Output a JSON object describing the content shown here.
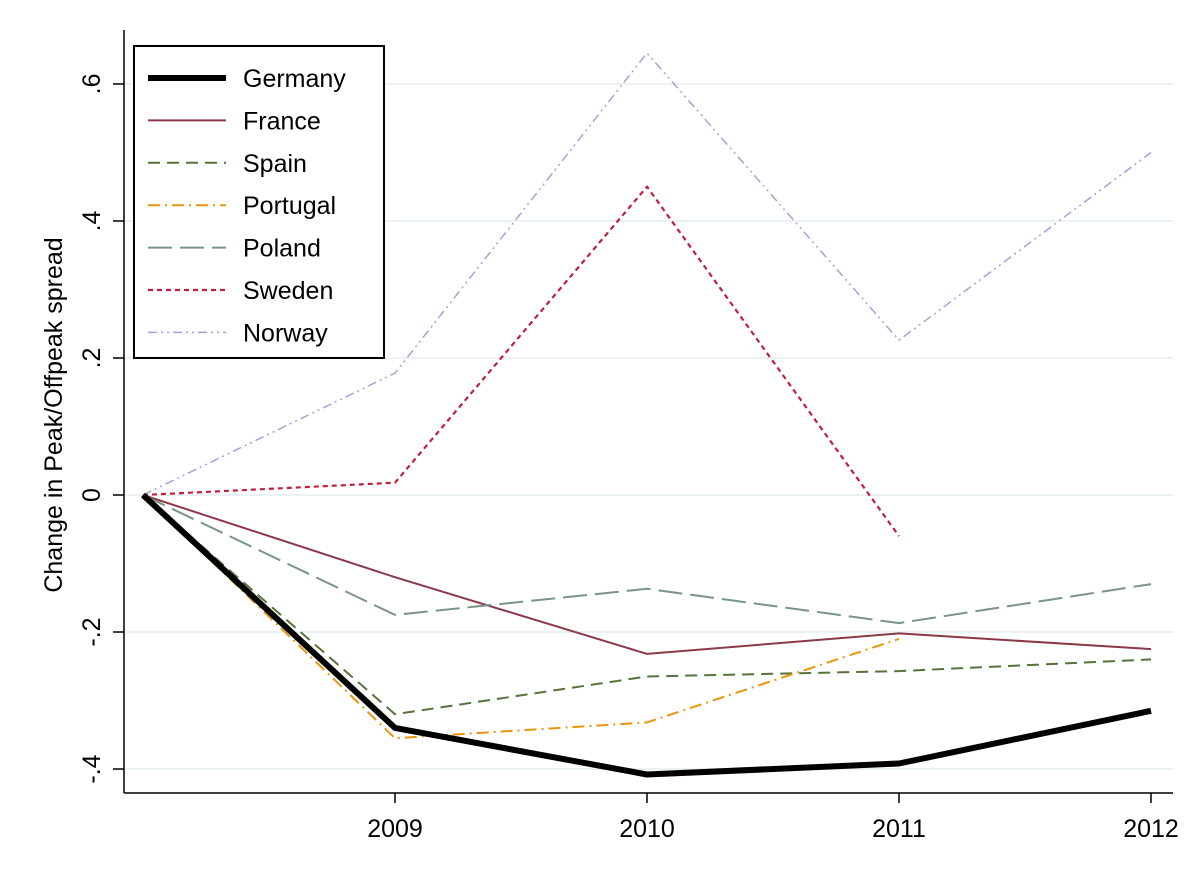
{
  "chart_data": {
    "type": "line",
    "title": "",
    "xlabel": "",
    "ylabel": "Change in Peak/Offpeak spread",
    "x": [
      2008,
      2009,
      2010,
      2011,
      2012
    ],
    "x_tick_values": [
      2009,
      2010,
      2011,
      2012
    ],
    "x_tick_labels": [
      "2009",
      "2010",
      "2011",
      "2012"
    ],
    "xlim": [
      2008,
      2012
    ],
    "y_tick_values": [
      -0.4,
      -0.2,
      0,
      0.2,
      0.4,
      0.6
    ],
    "y_tick_labels": [
      "-.4",
      "-.2",
      "0",
      ".2",
      ".4",
      ".6"
    ],
    "ylim": [
      -0.435,
      0.67
    ],
    "grid": true,
    "legend_position": "top-left",
    "series": [
      {
        "name": "Germany",
        "color": "#000000",
        "style": "solid-thick",
        "values": [
          0,
          -0.34,
          -0.408,
          -0.392,
          -0.315
        ]
      },
      {
        "name": "France",
        "color": "#8b3a4a",
        "style": "solid",
        "values": [
          0,
          -0.12,
          -0.232,
          -0.202,
          -0.225
        ]
      },
      {
        "name": "Spain",
        "color": "#55733a",
        "style": "dash",
        "values": [
          0,
          -0.32,
          -0.265,
          -0.257,
          -0.24
        ]
      },
      {
        "name": "Portugal",
        "color": "#e8960c",
        "style": "dashdot",
        "values": [
          0,
          -0.355,
          -0.332,
          -0.21,
          null
        ]
      },
      {
        "name": "Poland",
        "color": "#7a9485",
        "style": "longdash",
        "values": [
          0,
          -0.175,
          -0.137,
          -0.187,
          -0.13
        ]
      },
      {
        "name": "Sweden",
        "color": "#c0203c",
        "style": "shortdash",
        "values": [
          0,
          0.018,
          0.45,
          -0.06,
          null
        ]
      },
      {
        "name": "Norway",
        "color": "#a89fdc",
        "style": "dashdotdot",
        "values": [
          0,
          0.178,
          0.645,
          0.226,
          0.5
        ]
      }
    ]
  }
}
